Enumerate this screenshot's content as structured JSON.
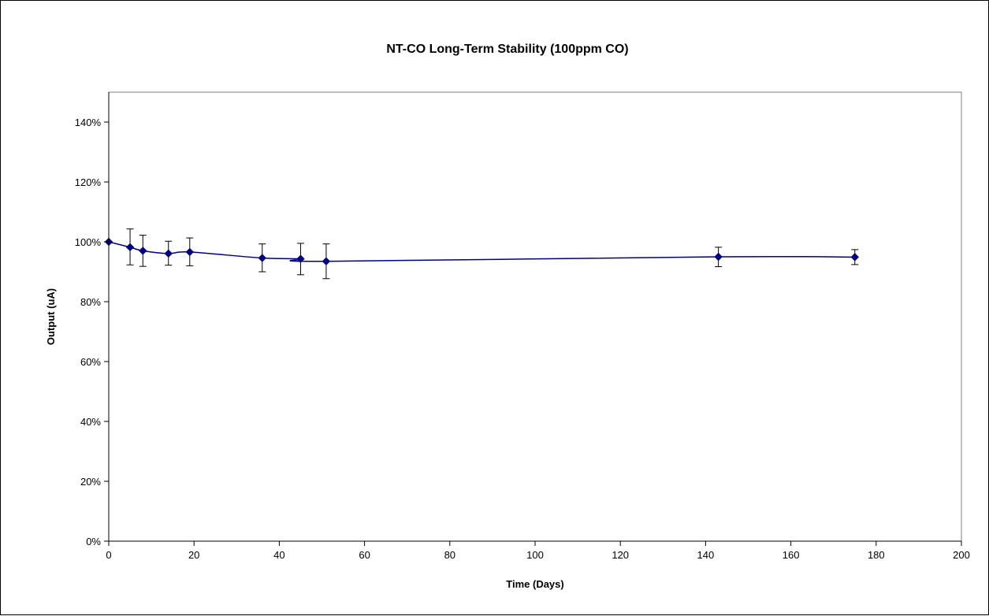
{
  "chart_data": {
    "type": "line",
    "title": "NT-CO Long-Term Stability (100ppm CO)",
    "xlabel": "Time (Days)",
    "ylabel": "Output (uA)",
    "xlim": [
      0,
      200
    ],
    "ylim": [
      0,
      150
    ],
    "x_ticks": [
      0,
      20,
      40,
      60,
      80,
      100,
      120,
      140,
      160,
      180,
      200
    ],
    "y_ticks": [
      0,
      20,
      40,
      60,
      80,
      100,
      120,
      140
    ],
    "y_tick_labels": [
      "0%",
      "20%",
      "40%",
      "60%",
      "80%",
      "100%",
      "120%",
      "140%"
    ],
    "grid": false,
    "legend": "none",
    "series": [
      {
        "color": "#000080",
        "marker": "diamond",
        "smooth": true,
        "x": [
          0,
          5,
          8,
          14,
          19,
          36,
          45,
          51,
          143,
          175
        ],
        "y": [
          100,
          98.2,
          97,
          96.1,
          96.6,
          94.6,
          94.3,
          93.5,
          95,
          94.9
        ],
        "error_upper": [
          100,
          104.3,
          102.2,
          100.2,
          101.3,
          99.3,
          99.5,
          99.3,
          98.2,
          97.4
        ],
        "error_lower": [
          100,
          92.3,
          91.8,
          92.2,
          92,
          90,
          89,
          87.7,
          91.7,
          92.4
        ]
      }
    ]
  }
}
